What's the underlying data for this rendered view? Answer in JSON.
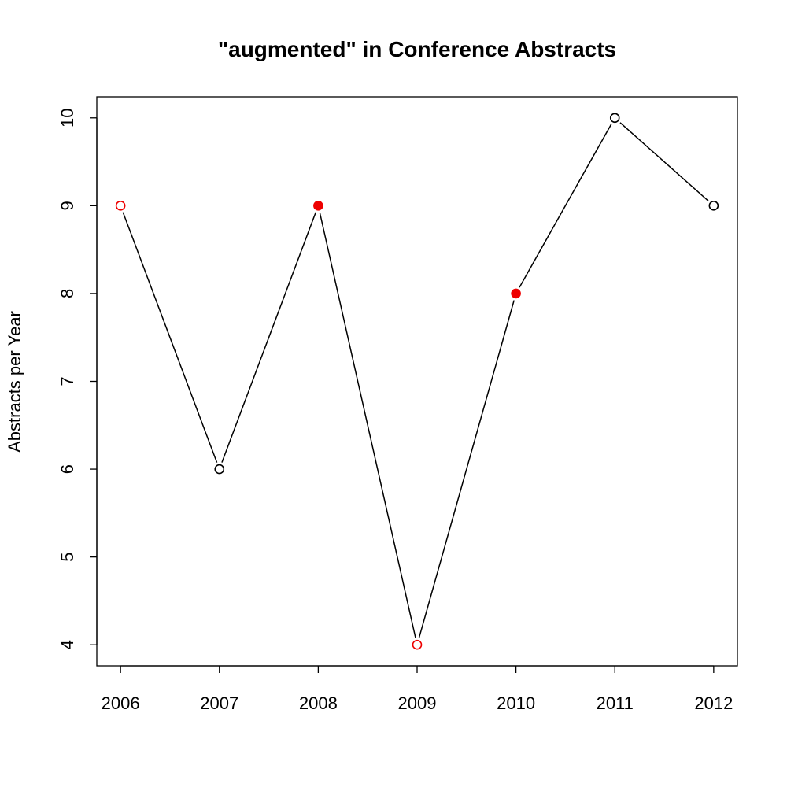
{
  "chart_data": {
    "type": "line",
    "title": "\"augmented\" in Conference Abstracts",
    "xlabel": "",
    "ylabel": "Abstracts per Year",
    "x": [
      2006,
      2007,
      2008,
      2009,
      2010,
      2011,
      2012
    ],
    "y": [
      9,
      6,
      9,
      4,
      8,
      10,
      9
    ],
    "xlim": [
      2005.76,
      2012.24
    ],
    "ylim": [
      3.76,
      10.24
    ],
    "x_ticks": [
      2006,
      2007,
      2008,
      2009,
      2010,
      2011,
      2012
    ],
    "y_ticks": [
      4,
      5,
      6,
      7,
      8,
      9,
      10
    ],
    "marker_styles": [
      "open-red",
      "open-black",
      "filled-red",
      "open-red",
      "filled-red",
      "open-black",
      "open-black"
    ],
    "line_color": "#000000",
    "highlight_color": "#ee0000",
    "grid": false,
    "legend": "none"
  }
}
